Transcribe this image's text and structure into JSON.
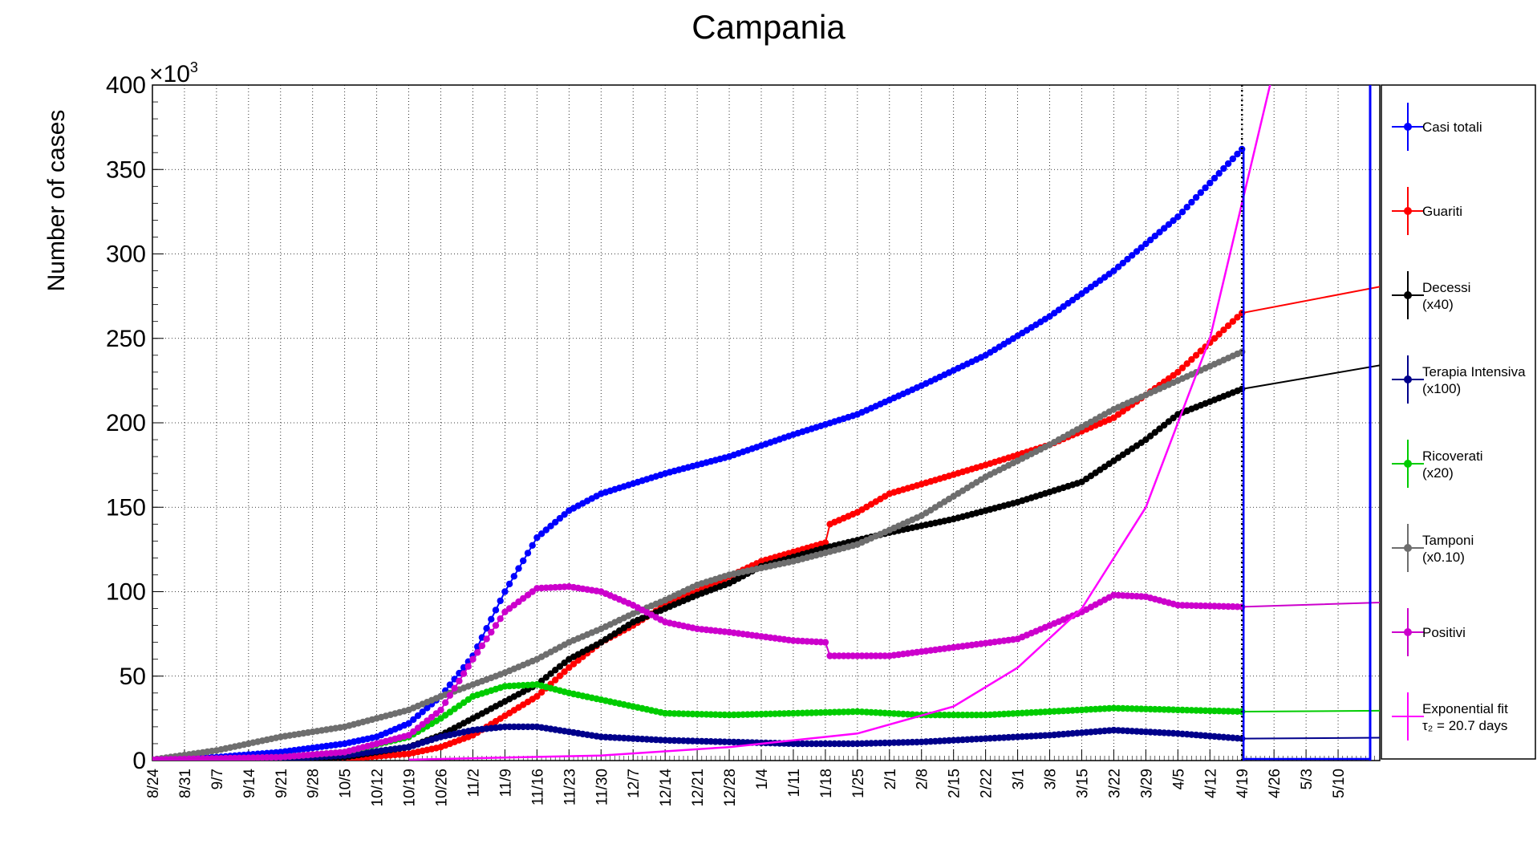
{
  "chart_data": {
    "type": "line",
    "title": "Campania",
    "ylabel": "Number of cases",
    "y_multiplier": "×10",
    "y_multiplier_exp": "3",
    "ylim": [
      0,
      400
    ],
    "yticks": [
      0,
      50,
      100,
      150,
      200,
      250,
      300,
      350,
      400
    ],
    "x_start": "8/24",
    "x_days": 267,
    "xtick_labels": [
      "8/24",
      "8/31",
      "9/7",
      "9/14",
      "9/21",
      "9/28",
      "10/5",
      "10/12",
      "10/19",
      "10/26",
      "11/2",
      "11/9",
      "11/16",
      "11/23",
      "11/30",
      "12/7",
      "12/14",
      "12/21",
      "12/28",
      "1/4",
      "1/11",
      "1/18",
      "1/25",
      "2/1",
      "2/8",
      "2/15",
      "2/22",
      "3/1",
      "3/8",
      "3/15",
      "3/22",
      "3/29",
      "4/5",
      "4/12",
      "4/19",
      "4/26",
      "5/3",
      "5/10"
    ],
    "grid": true,
    "legend_position": "right",
    "vlines": [
      {
        "day": 238,
        "style": "dotted",
        "color": "#000000"
      }
    ],
    "series": [
      {
        "name": "Casi totali",
        "color": "#0000ff",
        "marker": true,
        "points": [
          [
            0,
            0.5
          ],
          [
            14,
            2
          ],
          [
            28,
            5
          ],
          [
            42,
            10
          ],
          [
            49,
            14
          ],
          [
            56,
            22
          ],
          [
            63,
            38
          ],
          [
            70,
            62
          ],
          [
            77,
            100
          ],
          [
            84,
            132
          ],
          [
            91,
            148
          ],
          [
            98,
            158
          ],
          [
            112,
            170
          ],
          [
            126,
            180
          ],
          [
            140,
            193
          ],
          [
            154,
            205
          ],
          [
            168,
            222
          ],
          [
            182,
            240
          ],
          [
            196,
            263
          ],
          [
            210,
            290
          ],
          [
            224,
            322
          ],
          [
            238,
            362
          ]
        ]
      },
      {
        "name": "Guariti",
        "color": "#ff0000",
        "marker": true,
        "points": [
          [
            0,
            0
          ],
          [
            28,
            0.5
          ],
          [
            42,
            1
          ],
          [
            56,
            4
          ],
          [
            63,
            8
          ],
          [
            70,
            15
          ],
          [
            84,
            38
          ],
          [
            91,
            55
          ],
          [
            98,
            70
          ],
          [
            105,
            80
          ],
          [
            112,
            92
          ],
          [
            119,
            100
          ],
          [
            133,
            118
          ],
          [
            147,
            129
          ],
          [
            148,
            140
          ],
          [
            154,
            147
          ],
          [
            161,
            158
          ],
          [
            182,
            175
          ],
          [
            196,
            187
          ],
          [
            210,
            203
          ],
          [
            224,
            230
          ],
          [
            238,
            265
          ],
          [
            296,
            295
          ]
        ]
      },
      {
        "name": "Decessi\n(x40)",
        "color": "#000000",
        "marker": true,
        "points": [
          [
            0,
            0
          ],
          [
            28,
            0.5
          ],
          [
            42,
            2
          ],
          [
            56,
            8
          ],
          [
            63,
            15
          ],
          [
            70,
            25
          ],
          [
            84,
            45
          ],
          [
            91,
            60
          ],
          [
            98,
            70
          ],
          [
            105,
            82
          ],
          [
            112,
            90
          ],
          [
            119,
            98
          ],
          [
            126,
            105
          ],
          [
            133,
            115
          ],
          [
            147,
            126
          ],
          [
            161,
            135
          ],
          [
            175,
            143
          ],
          [
            189,
            153
          ],
          [
            203,
            165
          ],
          [
            217,
            190
          ],
          [
            224,
            205
          ],
          [
            238,
            220
          ],
          [
            296,
            247
          ]
        ]
      },
      {
        "name": "Terapia Intensiva\n(x100)",
        "color": "#00008b",
        "marker": true,
        "points": [
          [
            0,
            0
          ],
          [
            28,
            1
          ],
          [
            42,
            3
          ],
          [
            56,
            8
          ],
          [
            63,
            14
          ],
          [
            70,
            18
          ],
          [
            77,
            20
          ],
          [
            84,
            20
          ],
          [
            91,
            17
          ],
          [
            98,
            14
          ],
          [
            105,
            13
          ],
          [
            112,
            12
          ],
          [
            126,
            11
          ],
          [
            140,
            10
          ],
          [
            154,
            10
          ],
          [
            168,
            11
          ],
          [
            182,
            13
          ],
          [
            196,
            15
          ],
          [
            210,
            18
          ],
          [
            224,
            16
          ],
          [
            238,
            13
          ],
          [
            296,
            14
          ]
        ]
      },
      {
        "name": "Ricoverati\n(x20)",
        "color": "#00cc00",
        "marker": true,
        "points": [
          [
            0,
            0
          ],
          [
            28,
            2
          ],
          [
            42,
            5
          ],
          [
            56,
            14
          ],
          [
            63,
            25
          ],
          [
            70,
            38
          ],
          [
            77,
            44
          ],
          [
            84,
            45
          ],
          [
            91,
            40
          ],
          [
            98,
            36
          ],
          [
            105,
            32
          ],
          [
            112,
            28
          ],
          [
            126,
            27
          ],
          [
            140,
            28
          ],
          [
            154,
            29
          ],
          [
            168,
            27
          ],
          [
            182,
            27
          ],
          [
            196,
            29
          ],
          [
            210,
            31
          ],
          [
            224,
            30
          ],
          [
            238,
            29
          ],
          [
            296,
            30
          ]
        ]
      },
      {
        "name": "Tamponi\n(x0.10)",
        "color": "#6e6e6e",
        "marker": true,
        "points": [
          [
            0,
            0.5
          ],
          [
            14,
            6
          ],
          [
            28,
            14
          ],
          [
            42,
            20
          ],
          [
            56,
            30
          ],
          [
            63,
            38
          ],
          [
            70,
            45
          ],
          [
            77,
            52
          ],
          [
            84,
            60
          ],
          [
            91,
            70
          ],
          [
            98,
            78
          ],
          [
            105,
            87
          ],
          [
            112,
            95
          ],
          [
            119,
            104
          ],
          [
            126,
            110
          ],
          [
            140,
            118
          ],
          [
            154,
            128
          ],
          [
            168,
            145
          ],
          [
            182,
            168
          ],
          [
            196,
            187
          ],
          [
            210,
            208
          ],
          [
            224,
            225
          ],
          [
            238,
            242
          ]
        ]
      },
      {
        "name": "Positivi",
        "color": "#cc00cc",
        "marker": true,
        "points": [
          [
            0,
            0.5
          ],
          [
            28,
            2
          ],
          [
            42,
            5
          ],
          [
            56,
            15
          ],
          [
            63,
            30
          ],
          [
            70,
            60
          ],
          [
            77,
            88
          ],
          [
            84,
            102
          ],
          [
            91,
            103
          ],
          [
            98,
            100
          ],
          [
            105,
            92
          ],
          [
            112,
            82
          ],
          [
            119,
            78
          ],
          [
            126,
            76
          ],
          [
            140,
            71
          ],
          [
            147,
            70
          ],
          [
            148,
            62
          ],
          [
            161,
            62
          ],
          [
            175,
            67
          ],
          [
            189,
            72
          ],
          [
            203,
            88
          ],
          [
            210,
            98
          ],
          [
            217,
            97
          ],
          [
            224,
            92
          ],
          [
            238,
            91
          ],
          [
            296,
            96
          ]
        ]
      },
      {
        "name": "Exponential fit\nτ₂ = 20.7 days",
        "color": "#ff00ff",
        "marker": false,
        "points": [
          [
            56,
            0.5
          ],
          [
            98,
            3
          ],
          [
            126,
            8
          ],
          [
            154,
            16
          ],
          [
            175,
            32
          ],
          [
            189,
            55
          ],
          [
            203,
            90
          ],
          [
            217,
            150
          ],
          [
            231,
            250
          ],
          [
            238,
            330
          ],
          [
            245,
            410
          ]
        ]
      }
    ]
  }
}
